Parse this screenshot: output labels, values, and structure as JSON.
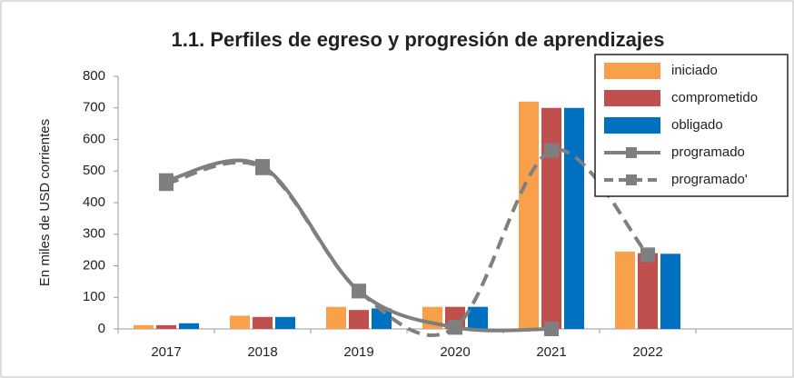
{
  "chart_data": {
    "type": "bar",
    "title": "1.1. Perfiles de egreso y progresión de aprendizajes",
    "y_label": "En miles de USD corrientes",
    "categories": [
      "2017",
      "2018",
      "2019",
      "2020",
      "2021",
      "2022",
      null
    ],
    "ylim": [
      0,
      800
    ],
    "yticks": [
      0,
      100,
      200,
      300,
      400,
      500,
      600,
      700,
      800
    ],
    "grid": false,
    "legend": "upper right",
    "series": [
      {
        "name": "iniciado",
        "type": "bar",
        "color": "#f9a04a",
        "values": [
          12,
          42,
          70,
          70,
          720,
          245,
          null
        ]
      },
      {
        "name": "comprometido",
        "type": "bar",
        "color": "#c0504d",
        "values": [
          12,
          38,
          60,
          70,
          700,
          240,
          null
        ]
      },
      {
        "name": "obligado",
        "type": "bar",
        "color": "#0070c0",
        "values": [
          18,
          38,
          65,
          70,
          700,
          238,
          null
        ]
      },
      {
        "name": "programado",
        "type": "line",
        "color": "#7f7f7f",
        "dashed": false,
        "smooth": true,
        "values": [
          470,
          515,
          120,
          5,
          0,
          null,
          null
        ]
      },
      {
        "name": "programado'",
        "type": "line",
        "color": "#7f7f7f",
        "dashed": true,
        "smooth": true,
        "values": [
          460,
          510,
          120,
          5,
          565,
          235,
          null
        ]
      }
    ]
  }
}
